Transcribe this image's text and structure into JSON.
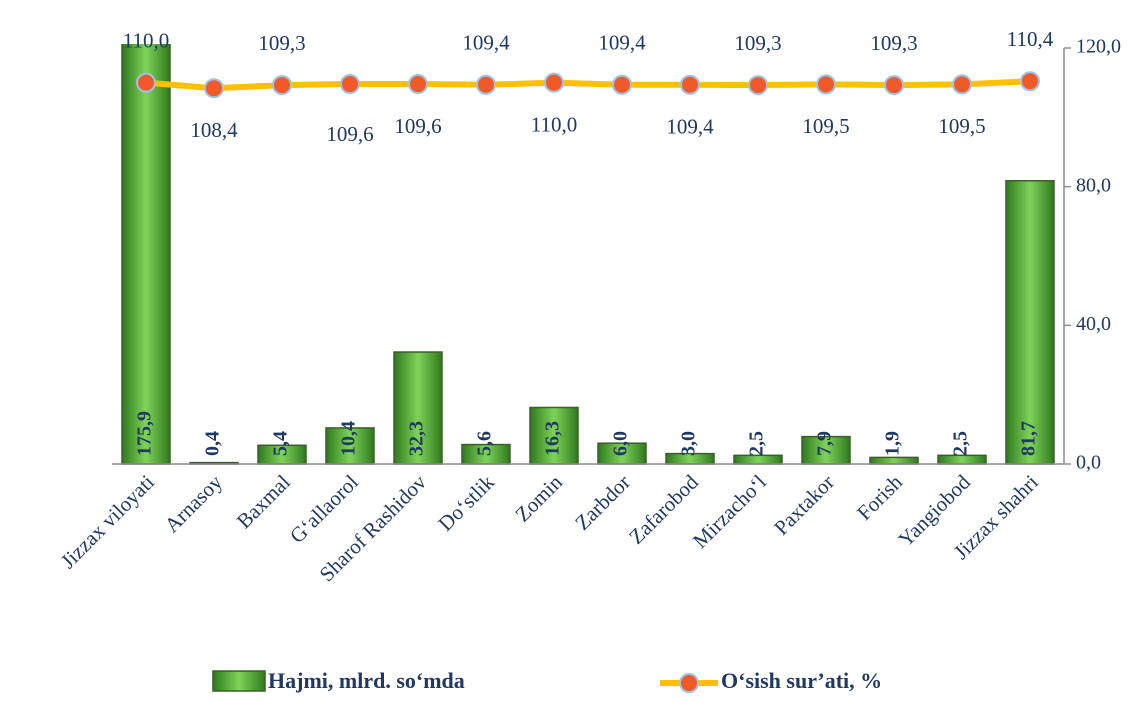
{
  "chart_data": {
    "type": "bar_line",
    "categories": [
      "Jizzax viloyati",
      "Arnasoy",
      "Baxmal",
      "G‘allaorol",
      "Sharof Rashidov",
      "Do‘stlik",
      "Zomin",
      "Zarbdor",
      "Zafarobod",
      "Mirzacho‘l",
      "Paxtakor",
      "Forish",
      "Yangiobod",
      "Jizzax shahri"
    ],
    "series": [
      {
        "name": "Hajmi, mlrd. so‘mda",
        "type": "bar",
        "color": "#4ea72e",
        "values": [
          175.9,
          0.4,
          5.4,
          10.4,
          32.3,
          5.6,
          16.3,
          6.0,
          3.0,
          2.5,
          7.9,
          1.9,
          2.5,
          81.7
        ],
        "value_labels": [
          "175,9",
          "0,4",
          "5,4",
          "10,4",
          "32,3",
          "5,6",
          "16,3",
          "6,0",
          "3,0",
          "2,5",
          "7,9",
          "1,9",
          "2,5",
          "81,7"
        ]
      },
      {
        "name": "O‘sish sur’ati, %",
        "type": "line",
        "color": "#ffc000",
        "marker_color": "#f05a28",
        "values": [
          110.0,
          108.4,
          109.3,
          109.6,
          109.6,
          109.4,
          110.0,
          109.4,
          109.4,
          109.3,
          109.5,
          109.3,
          109.5,
          110.4
        ],
        "value_labels": [
          "110,0",
          "108,4",
          "109,3",
          "109,6",
          "109,6",
          "109,4",
          "110,0",
          "109,4",
          "109,4",
          "109,3",
          "109,5",
          "109,3",
          "109,5",
          "110,4"
        ]
      }
    ],
    "ylim": [
      0,
      120
    ],
    "yticks": [
      {
        "value": 0,
        "label": "0,0"
      },
      {
        "value": 40,
        "label": "40,0"
      },
      {
        "value": 80,
        "label": "80,0"
      },
      {
        "value": 120,
        "label": "120,0"
      }
    ],
    "y_axis_side": "right",
    "grid": false,
    "legend": "bottom"
  }
}
